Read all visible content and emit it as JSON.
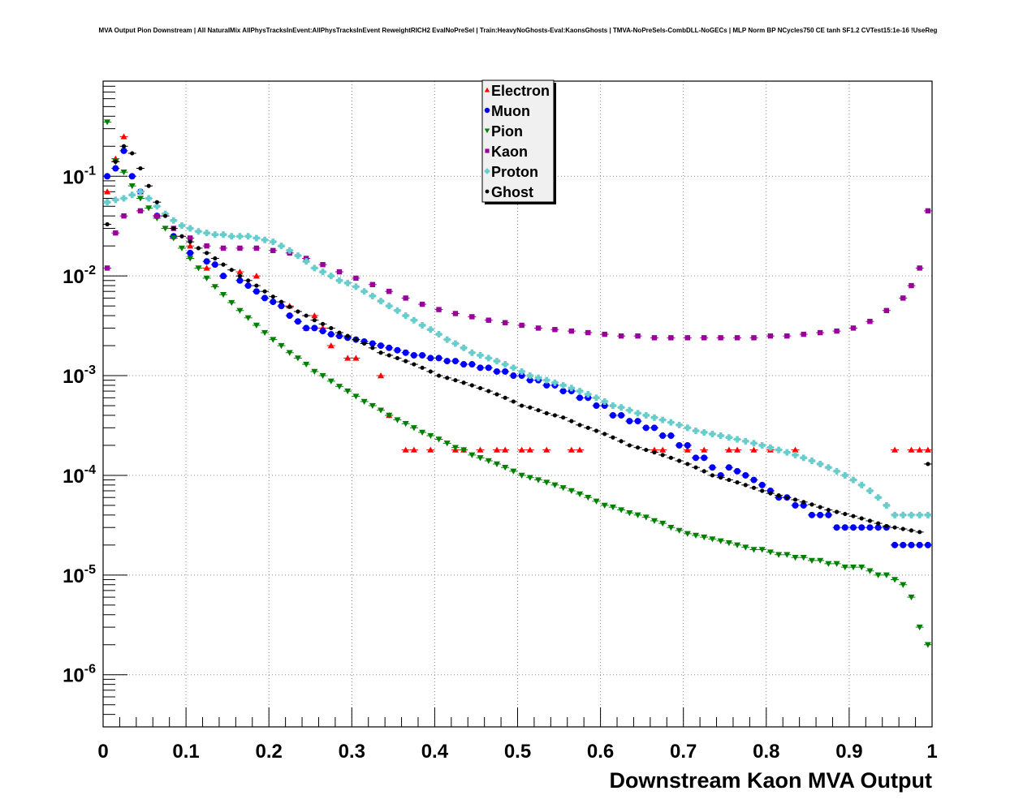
{
  "chart_data": {
    "type": "scatter",
    "title": "MVA Output Pion Downstream | All NaturalMix AllPhysTracksInEvent:AllPhysTracksInEvent ReweightRICH2 EvalNoPreSel | Train:HeavyNoGhosts-Eval:KaonsGhosts | TMVA-NoPreSels-CombDLL-NoGECs | MLP Norm BP NCycles750 CE tanh SF1.2 CVTest15:1e-16 !UseReg",
    "xlabel": "Downstream Kaon MVA Output",
    "ylabel": "",
    "xlim": [
      0,
      1
    ],
    "ylim": [
      3e-07,
      0.9
    ],
    "y_scale": "log",
    "grid": true,
    "legend_position": "top-center",
    "x_ticks": [
      "0",
      "0.1",
      "0.2",
      "0.3",
      "0.4",
      "0.5",
      "0.6",
      "0.7",
      "0.8",
      "0.9",
      "1"
    ],
    "y_ticks": [
      {
        "base": "10",
        "exp": "-1",
        "value": 0.1
      },
      {
        "base": "10",
        "exp": "-2",
        "value": 0.01
      },
      {
        "base": "10",
        "exp": "-3",
        "value": 0.001
      },
      {
        "base": "10",
        "exp": "-4",
        "value": 0.0001
      },
      {
        "base": "10",
        "exp": "-5",
        "value": 1e-05
      },
      {
        "base": "10",
        "exp": "-6",
        "value": 1e-06
      }
    ],
    "series": [
      {
        "name": "Electron",
        "color": "#ff0000",
        "marker": "triangle-up",
        "x": [
          0.005,
          0.015,
          0.025,
          0.045,
          0.065,
          0.085,
          0.105,
          0.125,
          0.145,
          0.165,
          0.185,
          0.225,
          0.245,
          0.255,
          0.265,
          0.275,
          0.295,
          0.305,
          0.335,
          0.345,
          0.365,
          0.375,
          0.395,
          0.425,
          0.435,
          0.455,
          0.475,
          0.485,
          0.505,
          0.515,
          0.535,
          0.565,
          0.575,
          0.665,
          0.675,
          0.705,
          0.725,
          0.755,
          0.765,
          0.785,
          0.805,
          0.835,
          0.955,
          0.975,
          0.985,
          0.995
        ],
        "y": [
          0.07,
          0.15,
          0.25,
          0.07,
          0.04,
          0.025,
          0.02,
          0.012,
          0.01,
          0.011,
          0.01,
          0.005,
          0.003,
          0.004,
          0.003,
          0.002,
          0.0015,
          0.0015,
          0.001,
          0.0004,
          0.00018,
          0.00018,
          0.00018,
          0.00018,
          0.00018,
          0.00018,
          0.00018,
          0.00018,
          0.00018,
          0.00018,
          0.00018,
          0.00018,
          0.00018,
          0.00018,
          0.00018,
          0.00018,
          0.00018,
          0.00018,
          0.00018,
          0.00018,
          0.00018,
          0.00018,
          0.00018,
          0.00018,
          0.00018,
          0.00018
        ]
      },
      {
        "name": "Muon",
        "color": "#0000ff",
        "marker": "circle",
        "x": [
          0.005,
          0.015,
          0.025,
          0.035,
          0.045,
          0.065,
          0.085,
          0.105,
          0.125,
          0.135,
          0.145,
          0.165,
          0.175,
          0.185,
          0.195,
          0.205,
          0.215,
          0.225,
          0.235,
          0.245,
          0.255,
          0.265,
          0.275,
          0.285,
          0.295,
          0.305,
          0.315,
          0.325,
          0.335,
          0.345,
          0.355,
          0.365,
          0.375,
          0.385,
          0.395,
          0.405,
          0.415,
          0.425,
          0.435,
          0.445,
          0.455,
          0.465,
          0.475,
          0.485,
          0.495,
          0.505,
          0.515,
          0.525,
          0.535,
          0.545,
          0.555,
          0.565,
          0.575,
          0.585,
          0.595,
          0.605,
          0.615,
          0.625,
          0.635,
          0.645,
          0.655,
          0.665,
          0.675,
          0.685,
          0.695,
          0.705,
          0.715,
          0.725,
          0.735,
          0.745,
          0.755,
          0.765,
          0.775,
          0.785,
          0.795,
          0.805,
          0.815,
          0.825,
          0.835,
          0.845,
          0.855,
          0.865,
          0.875,
          0.885,
          0.895,
          0.905,
          0.915,
          0.925,
          0.935,
          0.945,
          0.955,
          0.965,
          0.975,
          0.985,
          0.995
        ],
        "y": [
          0.1,
          0.12,
          0.18,
          0.1,
          0.07,
          0.04,
          0.025,
          0.017,
          0.014,
          0.013,
          0.01,
          0.009,
          0.008,
          0.007,
          0.006,
          0.0055,
          0.005,
          0.004,
          0.0035,
          0.003,
          0.003,
          0.0028,
          0.0026,
          0.0025,
          0.0024,
          0.0023,
          0.0022,
          0.0021,
          0.002,
          0.0019,
          0.0018,
          0.0017,
          0.0016,
          0.0016,
          0.0015,
          0.0015,
          0.0014,
          0.0014,
          0.0013,
          0.0013,
          0.0012,
          0.0012,
          0.0011,
          0.0011,
          0.001,
          0.001,
          0.0009,
          0.0009,
          0.0008,
          0.0008,
          0.0007,
          0.0007,
          0.0006,
          0.0006,
          0.0005,
          0.0005,
          0.0004,
          0.0004,
          0.00035,
          0.00035,
          0.0003,
          0.0003,
          0.00025,
          0.00025,
          0.0002,
          0.0002,
          0.00015,
          0.00015,
          0.00012,
          0.0001,
          0.00012,
          0.00011,
          0.0001,
          9e-05,
          8e-05,
          7e-05,
          6e-05,
          6e-05,
          5e-05,
          5e-05,
          4e-05,
          4e-05,
          4e-05,
          3e-05,
          3e-05,
          3e-05,
          3e-05,
          3e-05,
          3e-05,
          3e-05,
          2e-05,
          2e-05,
          2e-05,
          2e-05,
          2e-05
        ]
      },
      {
        "name": "Pion",
        "color": "#008000",
        "marker": "triangle-down",
        "x": [
          0.005,
          0.015,
          0.025,
          0.035,
          0.045,
          0.055,
          0.065,
          0.075,
          0.085,
          0.095,
          0.105,
          0.115,
          0.125,
          0.135,
          0.145,
          0.155,
          0.165,
          0.175,
          0.185,
          0.195,
          0.205,
          0.215,
          0.225,
          0.235,
          0.245,
          0.255,
          0.265,
          0.275,
          0.285,
          0.295,
          0.305,
          0.315,
          0.325,
          0.335,
          0.345,
          0.355,
          0.365,
          0.375,
          0.385,
          0.395,
          0.405,
          0.415,
          0.425,
          0.435,
          0.445,
          0.455,
          0.465,
          0.475,
          0.485,
          0.495,
          0.505,
          0.515,
          0.525,
          0.535,
          0.545,
          0.555,
          0.565,
          0.575,
          0.585,
          0.595,
          0.605,
          0.615,
          0.625,
          0.635,
          0.645,
          0.655,
          0.665,
          0.675,
          0.685,
          0.695,
          0.705,
          0.715,
          0.725,
          0.735,
          0.745,
          0.755,
          0.765,
          0.775,
          0.785,
          0.795,
          0.805,
          0.815,
          0.825,
          0.835,
          0.845,
          0.855,
          0.865,
          0.875,
          0.885,
          0.895,
          0.905,
          0.915,
          0.925,
          0.935,
          0.945,
          0.955,
          0.965,
          0.975,
          0.985,
          0.995
        ],
        "y": [
          0.35,
          0.14,
          0.11,
          0.08,
          0.06,
          0.048,
          0.038,
          0.03,
          0.024,
          0.019,
          0.015,
          0.012,
          0.0095,
          0.0078,
          0.0065,
          0.0054,
          0.0045,
          0.0038,
          0.0032,
          0.0027,
          0.0023,
          0.002,
          0.0017,
          0.0015,
          0.0013,
          0.0011,
          0.001,
          0.00088,
          0.00078,
          0.0007,
          0.00062,
          0.00055,
          0.0005,
          0.00045,
          0.0004,
          0.00036,
          0.00033,
          0.0003,
          0.00027,
          0.00025,
          0.00023,
          0.00021,
          0.00019,
          0.00018,
          0.00016,
          0.00015,
          0.00014,
          0.00013,
          0.00012,
          0.00011,
          0.0001,
          9.5e-05,
          9e-05,
          8.5e-05,
          8e-05,
          7.5e-05,
          7e-05,
          6.5e-05,
          6e-05,
          5.5e-05,
          5e-05,
          4.8e-05,
          4.5e-05,
          4.2e-05,
          4e-05,
          3.8e-05,
          3.5e-05,
          3.3e-05,
          3e-05,
          2.8e-05,
          2.6e-05,
          2.5e-05,
          2.4e-05,
          2.3e-05,
          2.2e-05,
          2.1e-05,
          2e-05,
          1.9e-05,
          1.8e-05,
          1.8e-05,
          1.7e-05,
          1.6e-05,
          1.6e-05,
          1.5e-05,
          1.5e-05,
          1.4e-05,
          1.4e-05,
          1.3e-05,
          1.3e-05,
          1.2e-05,
          1.2e-05,
          1.2e-05,
          1.1e-05,
          1e-05,
          1e-05,
          9e-06,
          8e-06,
          6e-06,
          3e-06,
          2e-06
        ]
      },
      {
        "name": "Kaon",
        "color": "#990099",
        "marker": "square",
        "x": [
          0.005,
          0.015,
          0.025,
          0.045,
          0.065,
          0.085,
          0.105,
          0.125,
          0.145,
          0.165,
          0.185,
          0.205,
          0.225,
          0.245,
          0.265,
          0.285,
          0.305,
          0.325,
          0.345,
          0.365,
          0.385,
          0.405,
          0.425,
          0.445,
          0.465,
          0.485,
          0.505,
          0.525,
          0.545,
          0.565,
          0.585,
          0.605,
          0.625,
          0.645,
          0.665,
          0.685,
          0.705,
          0.725,
          0.745,
          0.765,
          0.785,
          0.805,
          0.825,
          0.845,
          0.865,
          0.885,
          0.905,
          0.925,
          0.945,
          0.965,
          0.975,
          0.985,
          0.995
        ],
        "y": [
          0.012,
          0.027,
          0.04,
          0.045,
          0.04,
          0.03,
          0.024,
          0.02,
          0.019,
          0.019,
          0.019,
          0.018,
          0.017,
          0.015,
          0.013,
          0.011,
          0.0095,
          0.0082,
          0.007,
          0.006,
          0.0052,
          0.0046,
          0.0042,
          0.0039,
          0.0036,
          0.0034,
          0.0032,
          0.003,
          0.0029,
          0.0028,
          0.0027,
          0.0026,
          0.0025,
          0.0025,
          0.0024,
          0.0024,
          0.0024,
          0.0024,
          0.0024,
          0.0024,
          0.0024,
          0.0025,
          0.0025,
          0.0026,
          0.0027,
          0.0028,
          0.003,
          0.0035,
          0.0045,
          0.006,
          0.008,
          0.012,
          0.045
        ]
      },
      {
        "name": "Proton",
        "color": "#66cccc",
        "marker": "cross",
        "x": [
          0.005,
          0.015,
          0.025,
          0.035,
          0.045,
          0.055,
          0.065,
          0.075,
          0.085,
          0.095,
          0.105,
          0.115,
          0.125,
          0.135,
          0.145,
          0.155,
          0.165,
          0.175,
          0.185,
          0.195,
          0.205,
          0.215,
          0.225,
          0.235,
          0.245,
          0.255,
          0.265,
          0.275,
          0.285,
          0.295,
          0.305,
          0.315,
          0.325,
          0.335,
          0.345,
          0.355,
          0.365,
          0.375,
          0.385,
          0.395,
          0.405,
          0.415,
          0.425,
          0.435,
          0.445,
          0.455,
          0.465,
          0.475,
          0.485,
          0.495,
          0.505,
          0.515,
          0.525,
          0.535,
          0.545,
          0.555,
          0.565,
          0.575,
          0.585,
          0.595,
          0.605,
          0.615,
          0.625,
          0.635,
          0.645,
          0.655,
          0.665,
          0.675,
          0.685,
          0.695,
          0.705,
          0.715,
          0.725,
          0.735,
          0.745,
          0.755,
          0.765,
          0.775,
          0.785,
          0.795,
          0.805,
          0.815,
          0.825,
          0.835,
          0.845,
          0.855,
          0.865,
          0.875,
          0.885,
          0.895,
          0.905,
          0.915,
          0.925,
          0.935,
          0.945,
          0.955,
          0.965,
          0.975,
          0.985,
          0.995
        ],
        "y": [
          0.055,
          0.058,
          0.06,
          0.065,
          0.07,
          0.06,
          0.05,
          0.042,
          0.036,
          0.032,
          0.03,
          0.028,
          0.027,
          0.026,
          0.026,
          0.025,
          0.025,
          0.025,
          0.024,
          0.023,
          0.022,
          0.02,
          0.018,
          0.016,
          0.014,
          0.012,
          0.011,
          0.01,
          0.009,
          0.0085,
          0.0078,
          0.007,
          0.0063,
          0.0056,
          0.005,
          0.0045,
          0.004,
          0.0036,
          0.0032,
          0.0029,
          0.0026,
          0.0023,
          0.0021,
          0.0019,
          0.0017,
          0.0016,
          0.0015,
          0.0014,
          0.0013,
          0.0012,
          0.0011,
          0.001,
          0.00095,
          0.0009,
          0.00085,
          0.0008,
          0.00075,
          0.0007,
          0.00065,
          0.0006,
          0.00055,
          0.0005,
          0.00048,
          0.00045,
          0.00042,
          0.0004,
          0.00038,
          0.00036,
          0.00034,
          0.00032,
          0.0003,
          0.00028,
          0.00027,
          0.00026,
          0.00025,
          0.00024,
          0.00023,
          0.00022,
          0.00021,
          0.0002,
          0.00019,
          0.00018,
          0.00017,
          0.00016,
          0.00015,
          0.00014,
          0.00013,
          0.00012,
          0.00011,
          0.0001,
          9e-05,
          8e-05,
          7e-05,
          6e-05,
          5e-05,
          4e-05,
          4e-05,
          4e-05,
          4e-05,
          4e-05
        ]
      },
      {
        "name": "Ghost",
        "color": "#000000",
        "marker": "circle",
        "x": [
          0.005,
          0.015,
          0.025,
          0.035,
          0.045,
          0.055,
          0.065,
          0.075,
          0.085,
          0.095,
          0.105,
          0.115,
          0.125,
          0.135,
          0.145,
          0.155,
          0.165,
          0.175,
          0.185,
          0.195,
          0.205,
          0.215,
          0.225,
          0.235,
          0.245,
          0.255,
          0.265,
          0.275,
          0.285,
          0.295,
          0.305,
          0.315,
          0.325,
          0.335,
          0.345,
          0.355,
          0.365,
          0.375,
          0.385,
          0.395,
          0.405,
          0.415,
          0.425,
          0.435,
          0.445,
          0.455,
          0.465,
          0.475,
          0.485,
          0.495,
          0.505,
          0.515,
          0.525,
          0.535,
          0.545,
          0.555,
          0.565,
          0.575,
          0.585,
          0.595,
          0.605,
          0.615,
          0.625,
          0.635,
          0.645,
          0.655,
          0.665,
          0.675,
          0.685,
          0.695,
          0.705,
          0.715,
          0.725,
          0.735,
          0.745,
          0.755,
          0.765,
          0.775,
          0.785,
          0.795,
          0.805,
          0.815,
          0.825,
          0.835,
          0.845,
          0.855,
          0.865,
          0.875,
          0.885,
          0.895,
          0.905,
          0.915,
          0.925,
          0.935,
          0.945,
          0.955,
          0.965,
          0.975,
          0.985,
          0.995
        ],
        "y": [
          0.033,
          0.14,
          0.2,
          0.17,
          0.12,
          0.08,
          0.055,
          0.04,
          0.03,
          0.025,
          0.022,
          0.019,
          0.017,
          0.015,
          0.013,
          0.0115,
          0.01,
          0.009,
          0.008,
          0.007,
          0.0062,
          0.0055,
          0.0049,
          0.0044,
          0.004,
          0.0036,
          0.0033,
          0.003,
          0.0027,
          0.0025,
          0.0023,
          0.0021,
          0.0019,
          0.0017,
          0.0016,
          0.0015,
          0.0014,
          0.0013,
          0.0012,
          0.0011,
          0.001,
          0.00095,
          0.0009,
          0.00085,
          0.0008,
          0.00075,
          0.0007,
          0.00065,
          0.0006,
          0.00055,
          0.0005,
          0.00048,
          0.00045,
          0.00042,
          0.0004,
          0.00038,
          0.00035,
          0.00032,
          0.0003,
          0.00028,
          0.00026,
          0.00024,
          0.00022,
          0.0002,
          0.00019,
          0.00018,
          0.00017,
          0.00016,
          0.00015,
          0.00014,
          0.00013,
          0.00012,
          0.00011,
          0.0001,
          9.5e-05,
          9e-05,
          8.5e-05,
          8e-05,
          7.5e-05,
          7e-05,
          6.6e-05,
          6.3e-05,
          6e-05,
          5.7e-05,
          5.4e-05,
          5.1e-05,
          4.8e-05,
          4.5e-05,
          4.3e-05,
          4.1e-05,
          3.9e-05,
          3.7e-05,
          3.5e-05,
          3.3e-05,
          3.1e-05,
          3e-05,
          2.9e-05,
          2.8e-05,
          2.7e-05,
          0.00013
        ]
      }
    ]
  }
}
